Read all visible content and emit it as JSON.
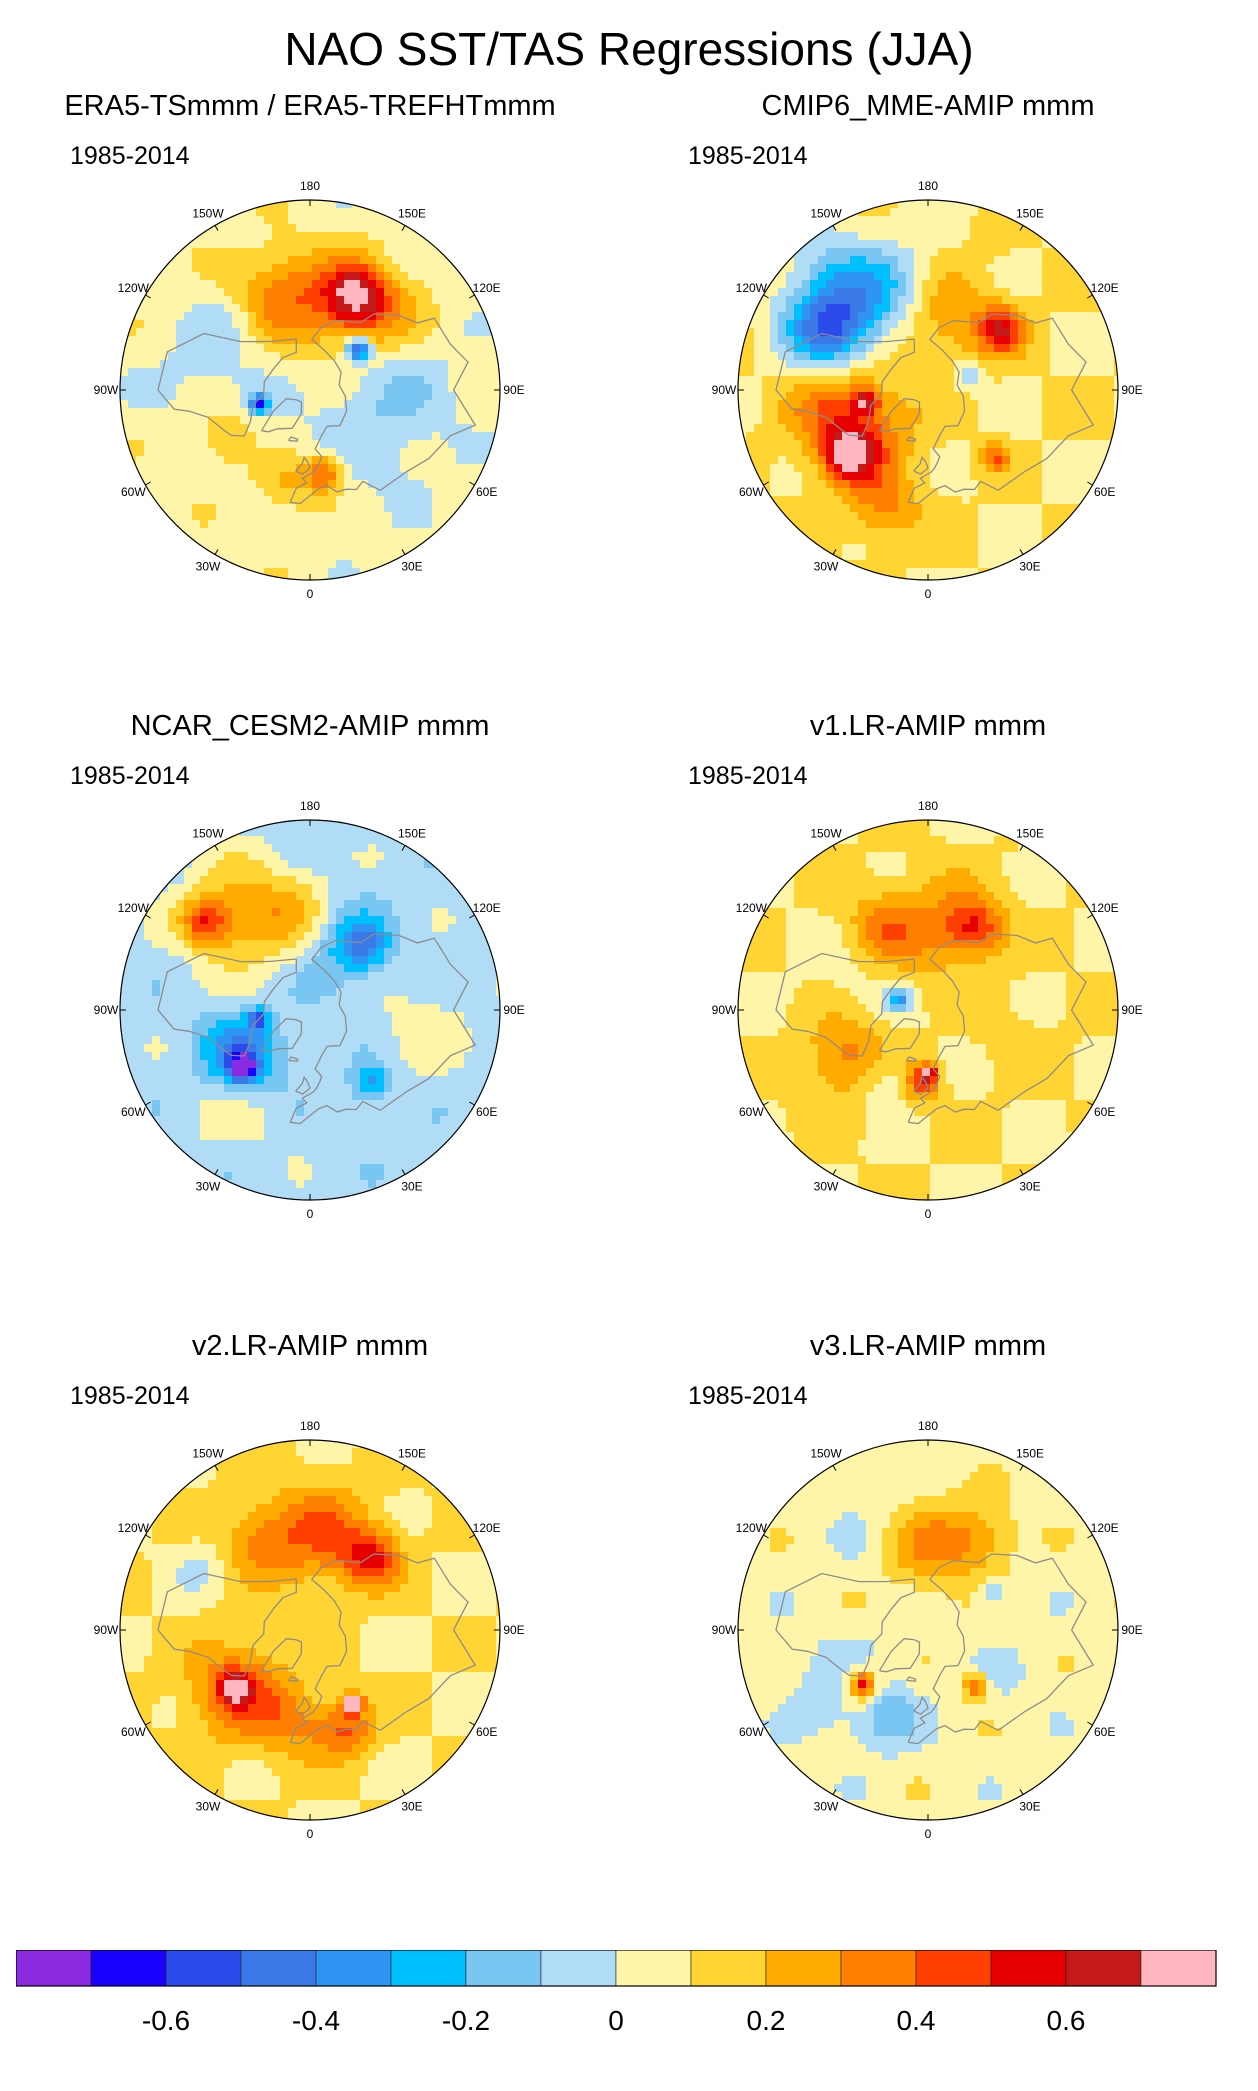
{
  "main_title": "NAO SST/TAS Regressions (JJA)",
  "period_label": "1985-2014",
  "longitude_labels": [
    "180",
    "150E",
    "120E",
    "90E",
    "60E",
    "30E",
    "0",
    "30W",
    "60W",
    "90W",
    "120W",
    "150W"
  ],
  "colors": {
    "coastline": "#8c8c8c",
    "levels": [
      "#8a2be2",
      "#1a00ff",
      "#2b4bea",
      "#3a7ae8",
      "#2f95f5",
      "#00bfff",
      "#7ac6f2",
      "#b0dcf5",
      "#fff5a8",
      "#ffd433",
      "#ffab00",
      "#ff7f00",
      "#ff3f00",
      "#e60000",
      "#c41a1a",
      "#ffb6c1"
    ]
  },
  "chart_data": {
    "type": "heatmap",
    "projection": "north-polar-stereographic",
    "title": "NAO SST/TAS Regressions (JJA)",
    "colorbar": {
      "levels": [
        -0.7,
        -0.6,
        -0.5,
        -0.4,
        -0.3,
        -0.2,
        -0.1,
        0,
        0.1,
        0.2,
        0.3,
        0.4,
        0.5,
        0.6,
        0.7
      ],
      "tick_labels": [
        "-0.6",
        "-0.4",
        "-0.2",
        "0",
        "0.2",
        "0.4",
        "0.6"
      ],
      "tick_values": [
        -0.6,
        -0.4,
        -0.2,
        0,
        0.2,
        0.4,
        0.6
      ]
    },
    "panels": [
      {
        "title": "ERA5-TSmmm / ERA5-TREFHTmmm",
        "period": "1985-2014",
        "background": 0.05,
        "blobs": [
          {
            "lon": 175,
            "lat": 48,
            "r": 0.22,
            "v": 0.2
          },
          {
            "lon": 140,
            "lat": 42,
            "r": 0.2,
            "v": 0.3
          },
          {
            "lon": 155,
            "lat": 40,
            "r": 0.12,
            "v": 0.45
          },
          {
            "lon": -160,
            "lat": 40,
            "r": 0.2,
            "v": 0.2
          },
          {
            "lon": -130,
            "lat": 40,
            "r": 0.12,
            "v": -0.1
          },
          {
            "lon": -95,
            "lat": 40,
            "r": 0.22,
            "v": -0.1
          },
          {
            "lon": -40,
            "lat": 55,
            "r": 0.18,
            "v": -0.1
          },
          {
            "lon": -60,
            "lat": 45,
            "r": 0.15,
            "v": 0.2
          },
          {
            "lon": -15,
            "lat": 45,
            "r": 0.14,
            "v": 0.2
          },
          {
            "lon": 10,
            "lat": 50,
            "r": 0.08,
            "v": 0.35
          },
          {
            "lon": 60,
            "lat": 50,
            "r": 0.3,
            "v": -0.1
          },
          {
            "lon": 100,
            "lat": 50,
            "r": 0.25,
            "v": -0.1
          },
          {
            "lon": 130,
            "lat": 60,
            "r": 0.05,
            "v": -0.65
          },
          {
            "lon": -75,
            "lat": 65,
            "r": 0.04,
            "v": -0.6
          }
        ]
      },
      {
        "title": "CMIP6_MME-AMIP  mmm",
        "period": "1985-2014",
        "background": 0.1,
        "blobs": [
          {
            "lon": -140,
            "lat": 30,
            "r": 0.25,
            "v": -0.35
          },
          {
            "lon": -120,
            "lat": 35,
            "r": 0.18,
            "v": -0.45
          },
          {
            "lon": -165,
            "lat": 40,
            "r": 0.18,
            "v": -0.15
          },
          {
            "lon": 170,
            "lat": 55,
            "r": 0.22,
            "v": 0.2
          },
          {
            "lon": 130,
            "lat": 45,
            "r": 0.1,
            "v": 0.45
          },
          {
            "lon": -55,
            "lat": 50,
            "r": 0.22,
            "v": 0.3
          },
          {
            "lon": -50,
            "lat": 42,
            "r": 0.1,
            "v": 0.5
          },
          {
            "lon": -85,
            "lat": 45,
            "r": 0.2,
            "v": 0.2
          },
          {
            "lon": -80,
            "lat": 60,
            "r": 0.05,
            "v": 0.45
          },
          {
            "lon": 45,
            "lat": 45,
            "r": 0.06,
            "v": 0.3
          },
          {
            "lon": 110,
            "lat": 70,
            "r": 0.06,
            "v": -0.2
          },
          {
            "lon": -20,
            "lat": 30,
            "r": 0.15,
            "v": 0.2
          }
        ]
      },
      {
        "title": "NCAR_CESM2-AMIP  mmm",
        "period": "1985-2014",
        "background": -0.05,
        "blobs": [
          {
            "lon": -145,
            "lat": 35,
            "r": 0.25,
            "v": 0.3
          },
          {
            "lon": -130,
            "lat": 25,
            "r": 0.1,
            "v": 0.4
          },
          {
            "lon": -175,
            "lat": 45,
            "r": 0.18,
            "v": 0.2
          },
          {
            "lon": 160,
            "lat": 55,
            "r": 0.2,
            "v": -0.2
          },
          {
            "lon": 140,
            "lat": 50,
            "r": 0.1,
            "v": -0.3
          },
          {
            "lon": -55,
            "lat": 50,
            "r": 0.18,
            "v": -0.4
          },
          {
            "lon": -50,
            "lat": 48,
            "r": 0.06,
            "v": -0.6
          },
          {
            "lon": -40,
            "lat": 35,
            "r": 0.2,
            "v": 0.15
          },
          {
            "lon": 80,
            "lat": 35,
            "r": 0.2,
            "v": 0.1
          },
          {
            "lon": 40,
            "lat": 45,
            "r": 0.08,
            "v": -0.3
          },
          {
            "lon": -80,
            "lat": 65,
            "r": 0.04,
            "v": -0.5
          }
        ]
      },
      {
        "title": "v1.LR-AMIP  mmm",
        "period": "1985-2014",
        "background": 0.1,
        "blobs": [
          {
            "lon": 175,
            "lat": 50,
            "r": 0.22,
            "v": 0.2
          },
          {
            "lon": 150,
            "lat": 45,
            "r": 0.12,
            "v": 0.35
          },
          {
            "lon": -150,
            "lat": 45,
            "r": 0.15,
            "v": 0.2
          },
          {
            "lon": -60,
            "lat": 45,
            "r": 0.18,
            "v": 0.25
          },
          {
            "lon": -30,
            "lat": 50,
            "r": 0.12,
            "v": -0.15
          },
          {
            "lon": -5,
            "lat": 55,
            "r": 0.08,
            "v": 0.35
          },
          {
            "lon": 0,
            "lat": 60,
            "r": 0.03,
            "v": 0.6
          },
          {
            "lon": -110,
            "lat": 50,
            "r": 0.2,
            "v": -0.05
          },
          {
            "lon": 70,
            "lat": 45,
            "r": 0.18,
            "v": 0.05
          },
          {
            "lon": -110,
            "lat": 75,
            "r": 0.05,
            "v": -0.4
          }
        ]
      },
      {
        "title": "v2.LR-AMIP  mmm",
        "period": "1985-2014",
        "background": 0.1,
        "blobs": [
          {
            "lon": 175,
            "lat": 45,
            "r": 0.22,
            "v": 0.3
          },
          {
            "lon": 140,
            "lat": 45,
            "r": 0.12,
            "v": 0.4
          },
          {
            "lon": -150,
            "lat": 40,
            "r": 0.15,
            "v": 0.2
          },
          {
            "lon": -120,
            "lat": 30,
            "r": 0.12,
            "v": -0.1
          },
          {
            "lon": -50,
            "lat": 45,
            "r": 0.2,
            "v": 0.35
          },
          {
            "lon": -52,
            "lat": 45,
            "r": 0.06,
            "v": 0.55
          },
          {
            "lon": -10,
            "lat": 45,
            "r": 0.16,
            "v": 0.2
          },
          {
            "lon": 20,
            "lat": 40,
            "r": 0.12,
            "v": 0.3
          },
          {
            "lon": 30,
            "lat": 50,
            "r": 0.04,
            "v": 0.75
          }
        ]
      },
      {
        "title": "v3.LR-AMIP  mmm",
        "period": "1985-2014",
        "background": 0.05,
        "blobs": [
          {
            "lon": 180,
            "lat": 50,
            "r": 0.2,
            "v": 0.25
          },
          {
            "lon": 150,
            "lat": 40,
            "r": 0.15,
            "v": 0.2
          },
          {
            "lon": -150,
            "lat": 35,
            "r": 0.2,
            "v": -0.05
          },
          {
            "lon": -55,
            "lat": 40,
            "r": 0.2,
            "v": -0.15
          },
          {
            "lon": -50,
            "lat": 48,
            "r": 0.1,
            "v": 0.3
          },
          {
            "lon": -50,
            "lat": 50,
            "r": 0.04,
            "v": 0.45
          },
          {
            "lon": -25,
            "lat": 45,
            "r": 0.14,
            "v": -0.2
          },
          {
            "lon": 60,
            "lat": 45,
            "r": 0.15,
            "v": -0.05
          },
          {
            "lon": 40,
            "lat": 55,
            "r": 0.05,
            "v": 0.4
          },
          {
            "lon": 120,
            "lat": 55,
            "r": 0.06,
            "v": -0.2
          }
        ]
      }
    ]
  }
}
